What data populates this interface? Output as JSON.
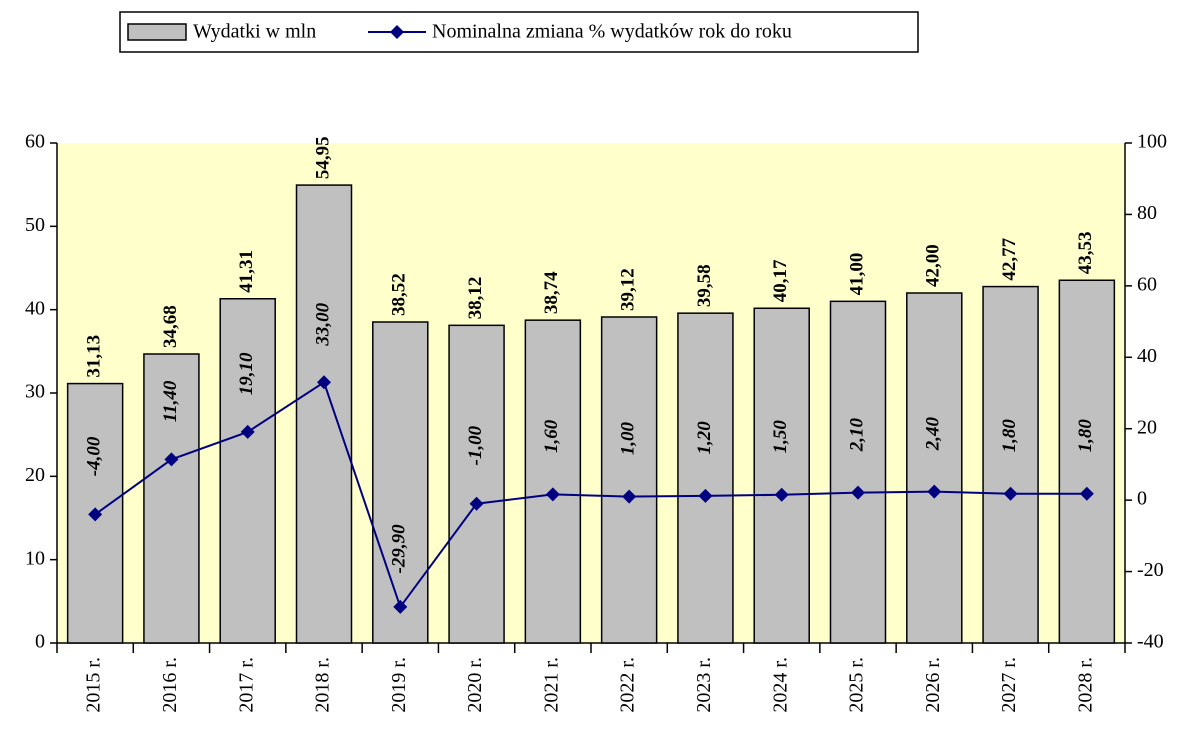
{
  "chart_data": {
    "type": "bar_line",
    "categories": [
      "2015 r.",
      "2016 r.",
      "2017 r.",
      "2018 r.",
      "2019 r.",
      "2020 r.",
      "2021 r.",
      "2022 r.",
      "2023 r.",
      "2024 r.",
      "2025 r.",
      "2026 r.",
      "2027 r.",
      "2028 r."
    ],
    "series": [
      {
        "name": "Wydatki w mln",
        "type": "bar",
        "color": "#c0c0c0",
        "label_color": "#000000",
        "values": [
          31.13,
          34.68,
          41.31,
          54.95,
          38.52,
          38.12,
          38.74,
          39.12,
          39.58,
          40.17,
          41.0,
          42.0,
          42.77,
          43.53
        ],
        "value_labels": [
          "31,13",
          "34,68",
          "41,31",
          "54,95",
          "38,52",
          "38,12",
          "38,74",
          "39,12",
          "39,58",
          "40,17",
          "41,00",
          "42,00",
          "42,77",
          "43,53"
        ]
      },
      {
        "name": "Nominalna zmiana % wydatków rok do roku",
        "type": "line",
        "axis": "y2",
        "color": "#000080",
        "label_color": "#000000",
        "negative_label_color": "#ff0000",
        "values": [
          -4.0,
          11.4,
          19.1,
          33.0,
          -29.9,
          -1.0,
          1.6,
          1.0,
          1.2,
          1.5,
          2.1,
          2.4,
          1.8,
          1.8
        ],
        "value_labels": [
          "-4,00",
          "11,40",
          "19,10",
          "33,00",
          "-29,90",
          "-1,00",
          "1,60",
          "1,00",
          "1,20",
          "1,50",
          "2,10",
          "2,40",
          "1,80",
          "1,80"
        ]
      }
    ],
    "ylim": [
      0,
      60
    ],
    "yticks": [
      0,
      10,
      20,
      30,
      40,
      50,
      60
    ],
    "y2lim": [
      -40,
      100
    ],
    "y2ticks": [
      -40,
      -20,
      0,
      20,
      40,
      60,
      80,
      100
    ],
    "plot_background": "#ffffcc",
    "legend": "top"
  }
}
